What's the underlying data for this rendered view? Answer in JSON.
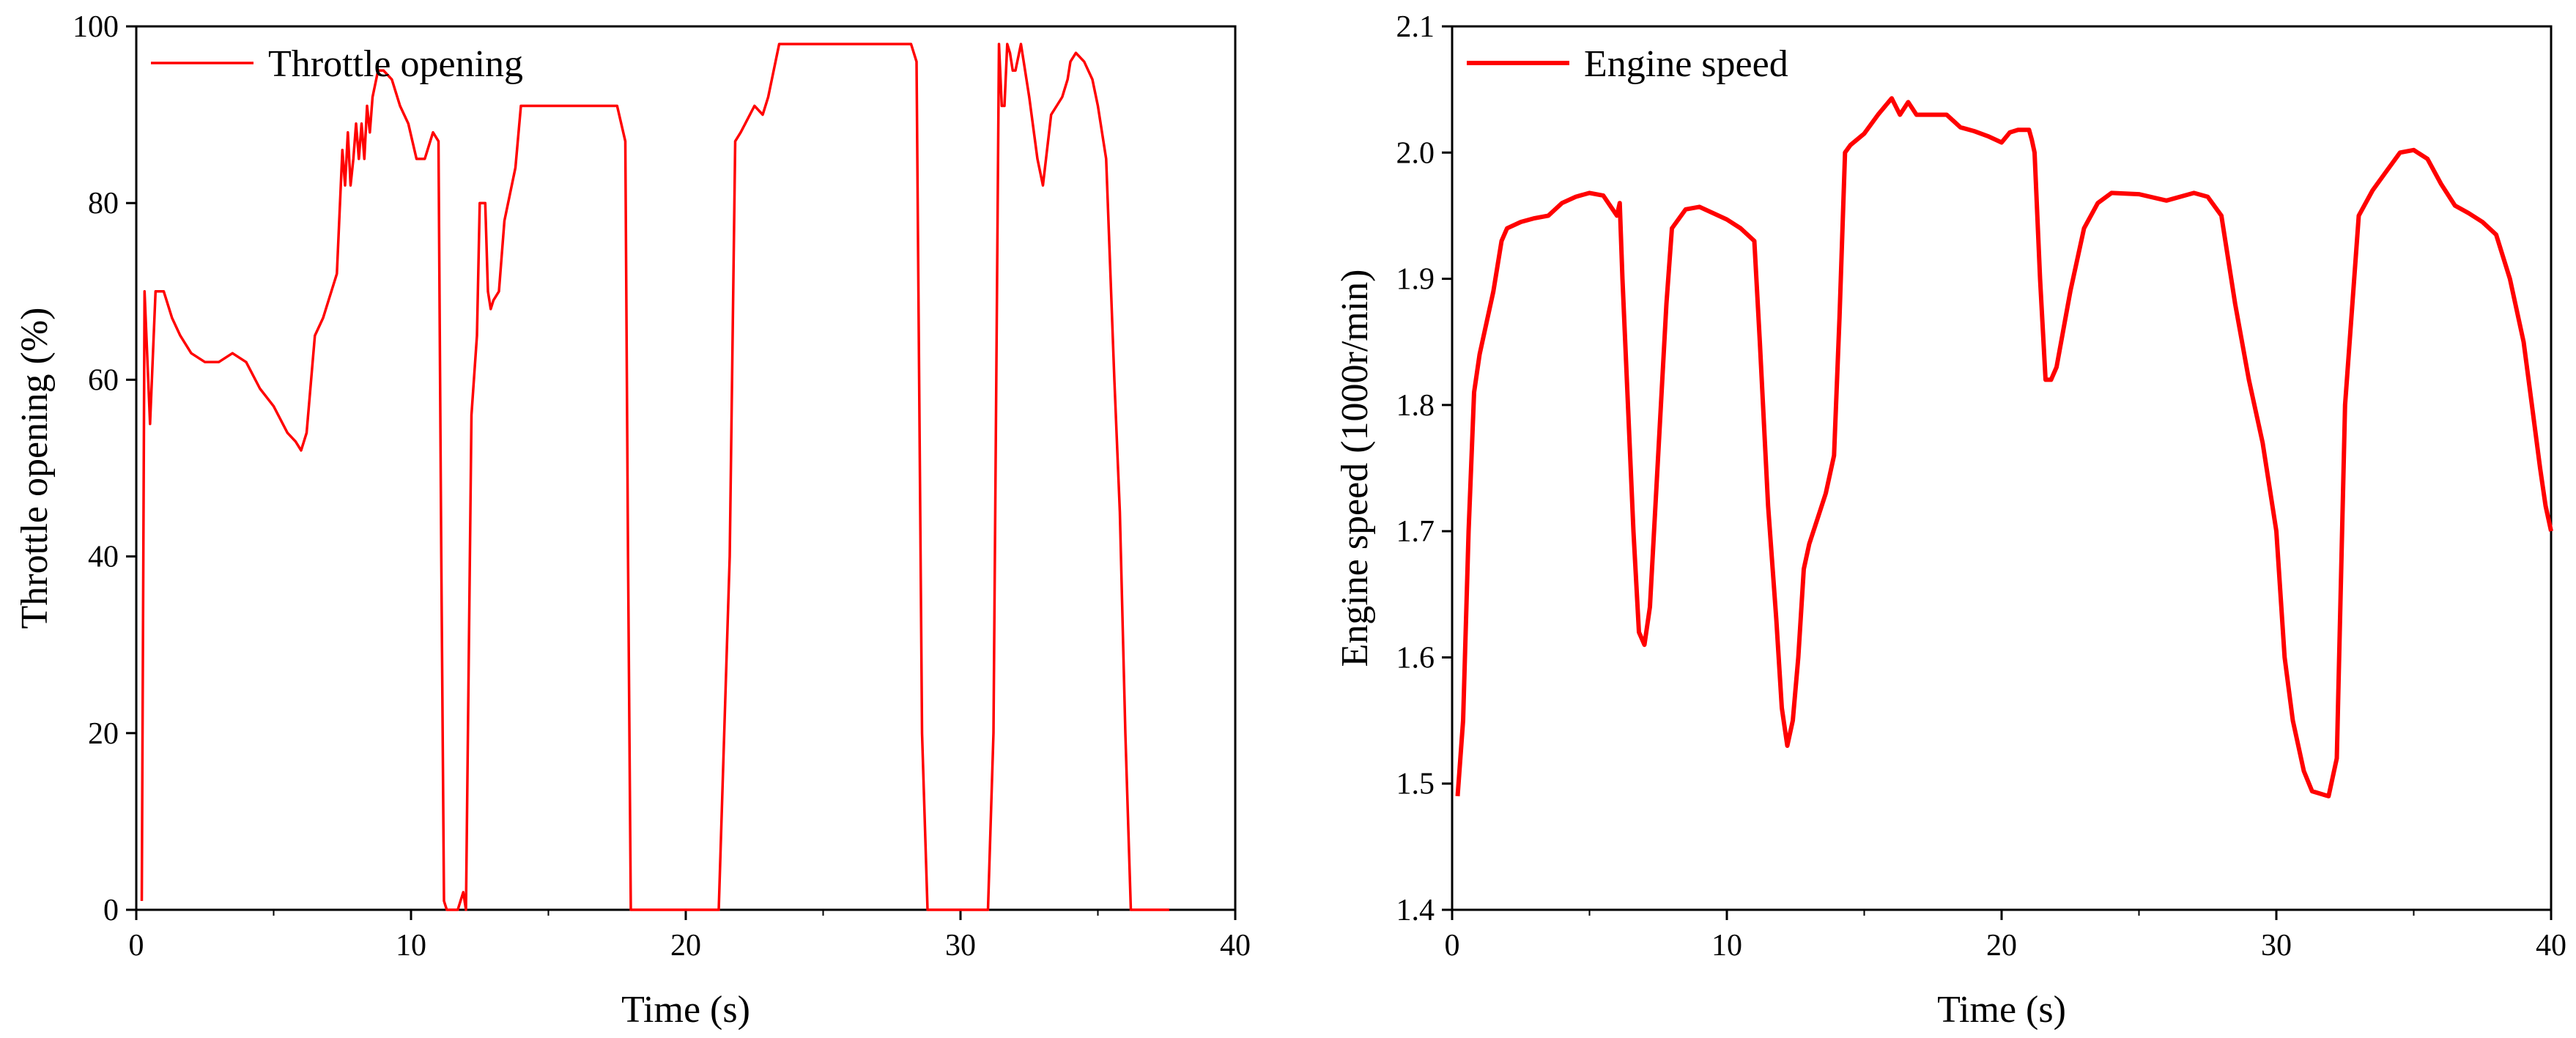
{
  "chart_data": [
    {
      "type": "line",
      "xlabel": "Time (s)",
      "ylabel": "Throttle opening (%)",
      "xlim": [
        0,
        40
      ],
      "ylim": [
        0,
        100
      ],
      "xticks": [
        0,
        10,
        20,
        30,
        40
      ],
      "yticks": [
        0,
        20,
        40,
        60,
        80,
        100
      ],
      "grid": false,
      "legend": "top-left",
      "series": [
        {
          "name": "Throttle opening",
          "color": "#ff0000",
          "x": [
            0.2,
            0.3,
            0.5,
            0.7,
            1.0,
            1.3,
            1.6,
            2.0,
            2.5,
            3.0,
            3.5,
            4.0,
            4.5,
            5.0,
            5.5,
            5.8,
            6.0,
            6.2,
            6.5,
            6.8,
            7.0,
            7.3,
            7.5,
            7.6,
            7.7,
            7.8,
            7.9,
            8.0,
            8.1,
            8.2,
            8.3,
            8.4,
            8.5,
            8.6,
            8.8,
            9.0,
            9.3,
            9.6,
            9.9,
            10.2,
            10.5,
            10.8,
            11.0,
            11.1,
            11.2,
            11.3,
            11.5,
            11.7,
            11.9,
            12.0,
            12.2,
            12.4,
            12.5,
            12.7,
            12.8,
            12.9,
            13.0,
            13.2,
            13.4,
            13.6,
            13.8,
            14.0,
            14.2,
            14.5,
            14.8,
            15.0,
            15.5,
            16.0,
            16.5,
            17.0,
            17.5,
            17.8,
            17.9,
            18.0,
            18.2,
            18.5,
            19.0,
            20.0,
            20.8,
            21.0,
            21.2,
            21.4,
            21.6,
            21.8,
            22.0,
            22.5,
            22.8,
            23.0,
            23.4,
            23.8,
            24.0,
            24.5,
            25.0,
            26.0,
            27.0,
            27.5,
            28.0,
            28.2,
            28.4,
            28.6,
            28.8,
            29.0,
            30.0,
            31.0,
            31.2,
            31.4,
            31.5,
            31.6,
            31.7,
            31.8,
            31.9,
            32.0,
            32.2,
            32.5,
            32.8,
            33.0,
            33.3,
            33.5,
            33.7,
            33.9,
            34.0,
            34.2,
            34.5,
            34.8,
            35.0,
            35.3,
            35.6,
            35.8,
            36.0,
            36.2,
            36.4,
            36.6,
            36.8,
            37.0,
            37.3,
            37.6
          ],
          "values": [
            1,
            70,
            55,
            70,
            70,
            67,
            65,
            63,
            62,
            62,
            63,
            62,
            59,
            57,
            54,
            53,
            52,
            54,
            65,
            67,
            69,
            72,
            86,
            82,
            88,
            82,
            85,
            89,
            85,
            89,
            85,
            91,
            88,
            92,
            95,
            95,
            94,
            91,
            89,
            85,
            85,
            88,
            87,
            40,
            1,
            0,
            0,
            0,
            2,
            0,
            56,
            65,
            80,
            80,
            70,
            68,
            69,
            70,
            78,
            81,
            84,
            91,
            91,
            91,
            91,
            91,
            91,
            91,
            91,
            91,
            91,
            87,
            40,
            0,
            0,
            0,
            0,
            0,
            0,
            0,
            0,
            20,
            40,
            87,
            88,
            91,
            90,
            92,
            98,
            98,
            98,
            98,
            98,
            98,
            98,
            98,
            98,
            98,
            96,
            20,
            0,
            0,
            0,
            0,
            20,
            98,
            91,
            91,
            98,
            97,
            95,
            95,
            98,
            92,
            85,
            82,
            90,
            91,
            92,
            94,
            96,
            97,
            96,
            94,
            91,
            85,
            60,
            45,
            20,
            0,
            0,
            0,
            0,
            0,
            0,
            0
          ]
        }
      ]
    },
    {
      "type": "line",
      "xlabel": "Time (s)",
      "ylabel": "Engine speed (1000r/min)",
      "xlim": [
        0,
        40
      ],
      "ylim": [
        1.4,
        2.1
      ],
      "xticks": [
        0,
        10,
        20,
        30,
        40
      ],
      "yticks": [
        1.4,
        1.5,
        1.6,
        1.7,
        1.8,
        1.9,
        2.0,
        2.1
      ],
      "grid": false,
      "legend": "top-left",
      "series": [
        {
          "name": "Engine speed",
          "color": "#ff0000",
          "x": [
            0.2,
            0.4,
            0.6,
            0.8,
            1.0,
            1.2,
            1.5,
            1.8,
            2.0,
            2.5,
            3.0,
            3.5,
            4.0,
            4.5,
            5.0,
            5.5,
            6.0,
            6.1,
            6.2,
            6.4,
            6.6,
            6.8,
            7.0,
            7.2,
            7.4,
            7.6,
            7.8,
            8.0,
            8.5,
            9.0,
            9.5,
            10.0,
            10.5,
            11.0,
            11.2,
            11.5,
            11.8,
            12.0,
            12.2,
            12.4,
            12.6,
            12.8,
            13.0,
            13.3,
            13.6,
            13.9,
            14.1,
            14.3,
            14.5,
            15.0,
            15.5,
            16.0,
            16.3,
            16.6,
            16.9,
            17.2,
            17.5,
            18.0,
            18.5,
            19.0,
            19.5,
            20.0,
            20.3,
            20.6,
            21.0,
            21.1,
            21.2,
            21.4,
            21.6,
            21.8,
            22.0,
            22.5,
            23.0,
            23.5,
            24.0,
            25.0,
            26.0,
            27.0,
            27.5,
            28.0,
            28.5,
            29.0,
            29.5,
            30.0,
            30.3,
            30.6,
            31.0,
            31.3,
            31.6,
            31.9,
            32.2,
            32.5,
            33.0,
            33.5,
            34.0,
            34.5,
            35.0,
            35.5,
            36.0,
            36.5,
            37.0,
            37.5,
            38.0,
            38.5,
            39.0,
            39.3,
            39.6,
            39.8,
            40.0
          ],
          "values": [
            1.49,
            1.55,
            1.7,
            1.81,
            1.84,
            1.86,
            1.89,
            1.93,
            1.94,
            1.945,
            1.948,
            1.95,
            1.96,
            1.965,
            1.968,
            1.966,
            1.95,
            1.96,
            1.9,
            1.8,
            1.7,
            1.62,
            1.61,
            1.64,
            1.72,
            1.8,
            1.88,
            1.94,
            1.955,
            1.957,
            1.952,
            1.947,
            1.94,
            1.93,
            1.85,
            1.72,
            1.63,
            1.56,
            1.53,
            1.55,
            1.6,
            1.67,
            1.69,
            1.71,
            1.73,
            1.76,
            1.87,
            2.0,
            2.006,
            2.015,
            2.03,
            2.043,
            2.03,
            2.04,
            2.03,
            2.03,
            2.03,
            2.03,
            2.02,
            2.017,
            2.013,
            2.008,
            2.016,
            2.018,
            2.018,
            2.01,
            2.0,
            1.9,
            1.82,
            1.82,
            1.83,
            1.89,
            1.94,
            1.96,
            1.968,
            1.967,
            1.962,
            1.968,
            1.965,
            1.95,
            1.88,
            1.82,
            1.77,
            1.7,
            1.6,
            1.55,
            1.51,
            1.494,
            1.492,
            1.49,
            1.52,
            1.8,
            1.95,
            1.97,
            1.985,
            2.0,
            2.002,
            1.995,
            1.975,
            1.958,
            1.952,
            1.945,
            1.935,
            1.9,
            1.85,
            1.8,
            1.75,
            1.72,
            1.7
          ]
        }
      ]
    }
  ]
}
